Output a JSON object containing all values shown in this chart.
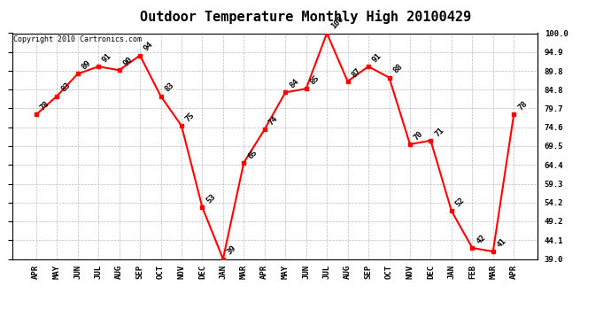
{
  "title": "Outdoor Temperature Monthly High 20100429",
  "copyright": "Copyright 2010 Cartronics.com",
  "labels": [
    "APR",
    "MAY",
    "JUN",
    "JUL",
    "AUG",
    "SEP",
    "OCT",
    "NOV",
    "DEC",
    "JAN",
    "MAR",
    "APR",
    "MAY",
    "JUN",
    "JUL",
    "AUG",
    "SEP",
    "OCT",
    "NOV",
    "DEC",
    "JAN",
    "FEB",
    "MAR",
    "APR"
  ],
  "values": [
    78,
    83,
    89,
    91,
    90,
    94,
    83,
    75,
    53,
    39,
    65,
    74,
    84,
    85,
    100,
    87,
    91,
    88,
    70,
    71,
    52,
    42,
    41,
    78
  ],
  "ylim_min": 39.0,
  "ylim_max": 100.0,
  "ytick_vals": [
    39.0,
    44.1,
    49.2,
    54.2,
    59.3,
    64.4,
    69.5,
    74.6,
    79.7,
    84.8,
    89.8,
    94.9,
    100.0
  ],
  "ytick_labels": [
    "39.0",
    "44.1",
    "49.2",
    "54.2",
    "59.3",
    "64.4",
    "69.5",
    "74.6",
    "79.7",
    "84.8",
    "89.8",
    "94.9",
    "100.0"
  ],
  "line_color": "#ff0000",
  "grid_color": "#bbbbbb",
  "grid_style": "--",
  "bg_color": "#ffffff",
  "title_fontsize": 11,
  "annotation_fontsize": 6.5,
  "copyright_fontsize": 6,
  "tick_fontsize": 6.5
}
